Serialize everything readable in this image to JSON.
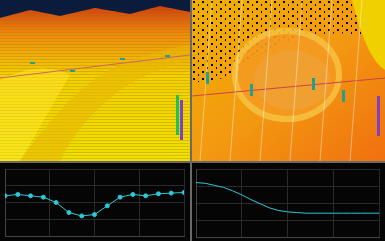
{
  "chart_data": [
    {
      "type": "line",
      "color": "#2ec8d8",
      "marker": "circle",
      "line_style": "solid",
      "x": [
        0,
        1,
        2,
        3,
        4,
        5,
        6,
        7,
        8,
        9,
        10,
        11,
        12,
        13,
        14
      ],
      "values": [
        6,
        6.2,
        6,
        5.8,
        5,
        3.5,
        3,
        3.2,
        4.5,
        5.8,
        6.2,
        6,
        6.3,
        6.4,
        6.5
      ],
      "xlim": [
        0,
        14
      ],
      "xticks": [
        0,
        3.5,
        7,
        10.5,
        14
      ],
      "ylim": [
        0,
        10
      ],
      "yticks": [
        0,
        2.5,
        5,
        7.5,
        10
      ],
      "grid": true,
      "tick_labels": false
    },
    {
      "type": "line",
      "color": "#2ec8d8",
      "marker": "none",
      "line_style": "solid",
      "x": [
        0,
        1,
        2,
        3,
        4,
        5,
        6,
        7,
        8,
        9,
        10,
        11,
        12,
        13,
        14,
        15,
        16,
        17,
        18,
        19,
        20
      ],
      "values": [
        8,
        7.9,
        7.6,
        7.3,
        6.8,
        6.2,
        5.5,
        4.9,
        4.3,
        3.9,
        3.7,
        3.6,
        3.5,
        3.5,
        3.5,
        3.5,
        3.5,
        3.5,
        3.5,
        3.5,
        3.5
      ],
      "xlim": [
        0,
        20
      ],
      "xticks": [
        0,
        5,
        10,
        15,
        20
      ],
      "ylim": [
        0,
        10
      ],
      "yticks": [
        0,
        2.5,
        5,
        7.5,
        10
      ],
      "grid": true,
      "tick_labels": false
    }
  ]
}
